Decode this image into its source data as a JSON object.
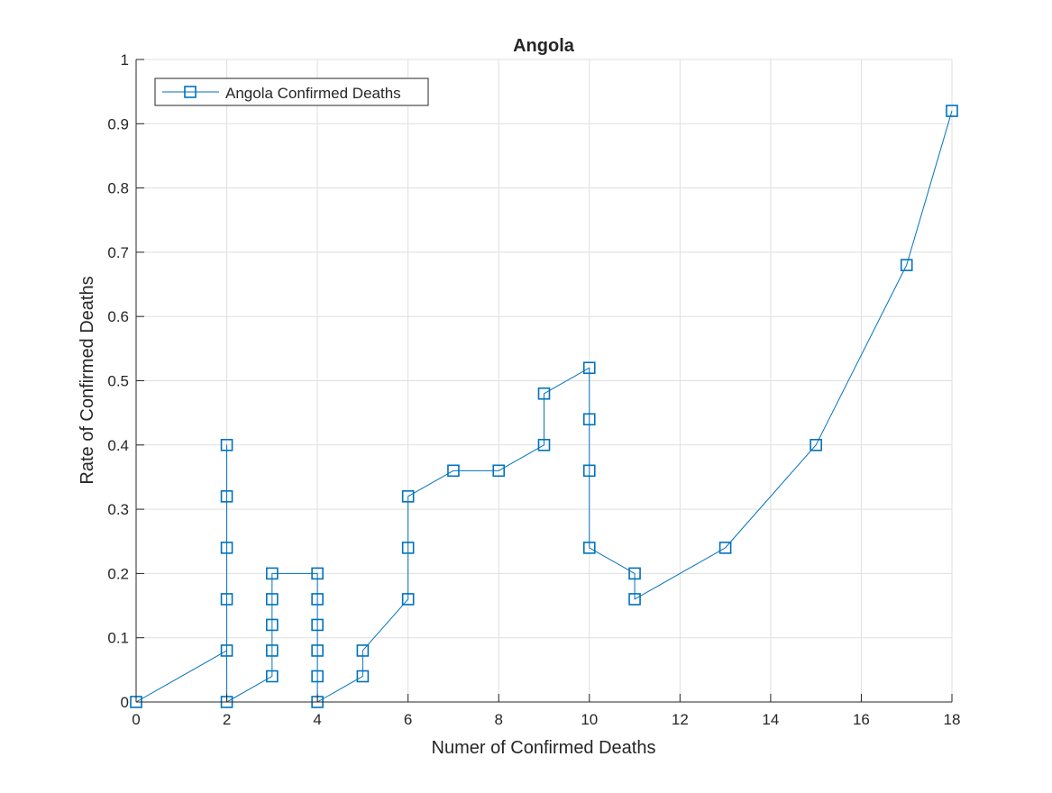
{
  "chart_data": {
    "type": "line",
    "title": "Angola",
    "xlabel": "Numer of Confirmed Deaths",
    "ylabel": "Rate of Confirmed Deaths",
    "xlim": [
      0,
      18
    ],
    "ylim": [
      0,
      1
    ],
    "xticks": [
      0,
      2,
      4,
      6,
      8,
      10,
      12,
      14,
      16,
      18
    ],
    "yticks": [
      0,
      0.1,
      0.2,
      0.3,
      0.4,
      0.5,
      0.6,
      0.7,
      0.8,
      0.9,
      1
    ],
    "xtick_labels": [
      "0",
      "2",
      "4",
      "6",
      "8",
      "10",
      "12",
      "14",
      "16",
      "18"
    ],
    "ytick_labels": [
      "0",
      "0.1",
      "0.2",
      "0.3",
      "0.4",
      "0.5",
      "0.6",
      "0.7",
      "0.8",
      "0.9",
      "1"
    ],
    "grid": true,
    "legend_position": "top-left",
    "series": [
      {
        "name": "Angola Confirmed Deaths",
        "color": "#0072BD",
        "marker": "square",
        "points": [
          [
            0,
            0
          ],
          [
            2,
            0.08
          ],
          [
            2,
            0.16
          ],
          [
            2,
            0.24
          ],
          [
            2,
            0.32
          ],
          [
            2,
            0.4
          ],
          [
            2,
            0
          ],
          [
            3,
            0.04
          ],
          [
            3,
            0.08
          ],
          [
            3,
            0.12
          ],
          [
            3,
            0.16
          ],
          [
            3,
            0.2
          ],
          [
            4,
            0.2
          ],
          [
            4,
            0.16
          ],
          [
            4,
            0.12
          ],
          [
            4,
            0.08
          ],
          [
            4,
            0.04
          ],
          [
            4,
            0
          ],
          [
            5,
            0.04
          ],
          [
            5,
            0.08
          ],
          [
            6,
            0.16
          ],
          [
            6,
            0.24
          ],
          [
            6,
            0.32
          ],
          [
            7,
            0.36
          ],
          [
            8,
            0.36
          ],
          [
            9,
            0.4
          ],
          [
            9,
            0.48
          ],
          [
            10,
            0.52
          ],
          [
            10,
            0.44
          ],
          [
            10,
            0.36
          ],
          [
            10,
            0.24
          ],
          [
            11,
            0.2
          ],
          [
            11,
            0.16
          ],
          [
            13,
            0.24
          ],
          [
            15,
            0.4
          ],
          [
            17,
            0.68
          ],
          [
            18,
            0.92
          ]
        ]
      }
    ]
  }
}
